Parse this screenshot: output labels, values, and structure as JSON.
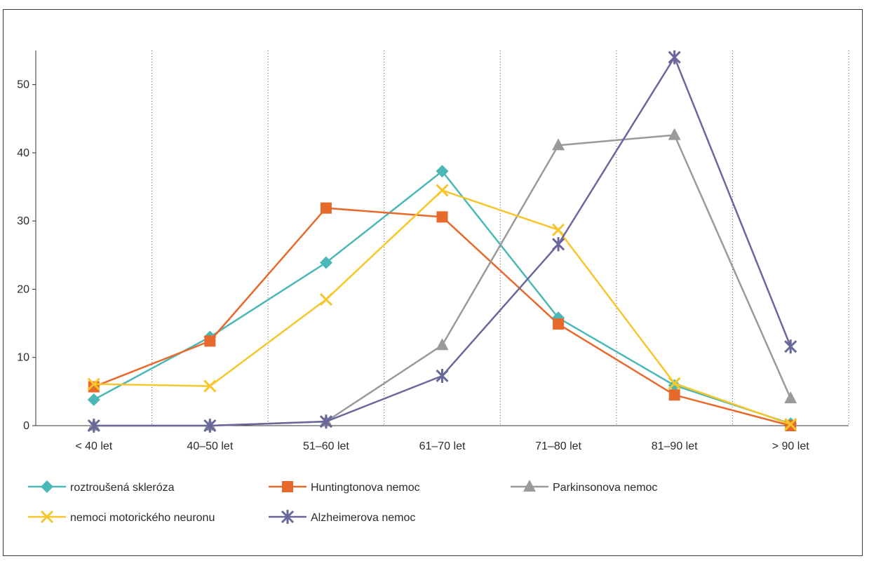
{
  "chart_data": {
    "type": "line",
    "title": "",
    "xlabel": "",
    "ylabel": "",
    "categories": [
      "< 40 let",
      "40–50 let",
      "51–60 let",
      "61–70 let",
      "71–80 let",
      "81–90 let",
      "> 90 let"
    ],
    "ylim": [
      0,
      55
    ],
    "yticks": [
      0,
      10,
      20,
      30,
      40,
      50
    ],
    "grid": "vertical-dotted",
    "legend_position": "bottom",
    "series": [
      {
        "name": "roztroušená skleróza",
        "color": "#4bb8b8",
        "marker": "diamond",
        "values": [
          3.8,
          13.0,
          23.9,
          37.3,
          15.8,
          5.9,
          0.3
        ]
      },
      {
        "name": "Huntingtonova nemoc",
        "color": "#e8692c",
        "marker": "square",
        "values": [
          5.7,
          12.4,
          31.9,
          30.6,
          14.9,
          4.5,
          0
        ]
      },
      {
        "name": "Parkinsonova nemoc",
        "color": "#9a9a9a",
        "marker": "triangle",
        "values": [
          0,
          0,
          0.6,
          11.8,
          41.1,
          42.6,
          4.0
        ]
      },
      {
        "name": "nemoci motorického neuronu",
        "color": "#f7c62a",
        "marker": "x",
        "values": [
          6.1,
          5.8,
          18.5,
          34.5,
          28.7,
          6.2,
          0.2
        ]
      },
      {
        "name": "Alzheimerova nemoc",
        "color": "#6a679b",
        "marker": "star",
        "values": [
          0,
          0,
          0.6,
          7.3,
          26.6,
          54.0,
          11.6
        ]
      }
    ]
  }
}
